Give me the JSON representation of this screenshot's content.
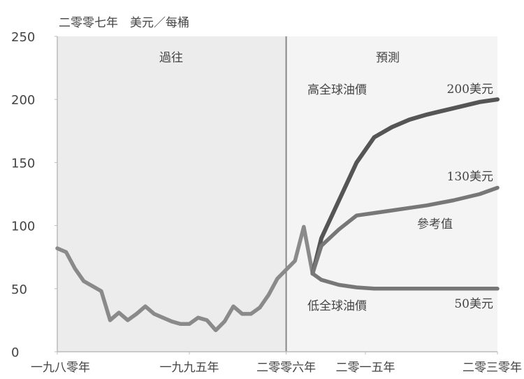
{
  "chart_data": {
    "type": "line",
    "unit_label": "二零零七年　美元／每桶",
    "x_range": [
      1980,
      2030
    ],
    "ylim": [
      0,
      250
    ],
    "y_ticks": [
      0,
      50,
      100,
      150,
      200,
      250
    ],
    "x_ticks": [
      {
        "x": 1980,
        "label": "一九八零年"
      },
      {
        "x": 1995,
        "label": "一九九五年"
      },
      {
        "x": 2006,
        "label": "二零零六年"
      },
      {
        "x": 2015,
        "label": "二零一五年"
      },
      {
        "x": 2030,
        "label": "二零三零年"
      }
    ],
    "divider_x": 2006,
    "regions": [
      {
        "label": "過往",
        "from": 1980,
        "to": 2006
      },
      {
        "label": "預測",
        "from": 2006,
        "to": 2030
      }
    ],
    "series": [
      {
        "name": "過往",
        "x": [
          1980,
          1981,
          1982,
          1983,
          1984,
          1985,
          1986,
          1987,
          1988,
          1989,
          1990,
          1991,
          1992,
          1993,
          1994,
          1995,
          1996,
          1997,
          1998,
          1999,
          2000,
          2001,
          2002,
          2003,
          2004,
          2005,
          2006,
          2007,
          2008,
          2009
        ],
        "values": [
          82,
          79,
          66,
          56,
          52,
          48,
          25,
          31,
          25,
          30,
          36,
          30,
          27,
          24,
          22,
          22,
          27,
          25,
          17,
          24,
          36,
          30,
          30,
          35,
          45,
          58,
          65,
          72,
          99,
          62
        ]
      },
      {
        "name": "高全球油價",
        "x": [
          2009,
          2010,
          2012,
          2014,
          2016,
          2018,
          2020,
          2022,
          2025,
          2028,
          2030
        ],
        "values": [
          62,
          90,
          120,
          150,
          170,
          178,
          184,
          188,
          193,
          198,
          200
        ]
      },
      {
        "name": "參考值",
        "x": [
          2009,
          2010,
          2012,
          2014,
          2016,
          2018,
          2020,
          2022,
          2025,
          2028,
          2030
        ],
        "values": [
          62,
          84,
          97,
          108,
          110,
          112,
          114,
          116,
          120,
          125,
          130
        ]
      },
      {
        "name": "低全球油價",
        "x": [
          2009,
          2010,
          2012,
          2014,
          2016,
          2018,
          2020,
          2022,
          2025,
          2028,
          2030
        ],
        "values": [
          62,
          57,
          53,
          51,
          50,
          50,
          50,
          50,
          50,
          50,
          50
        ]
      }
    ],
    "annotations": {
      "high_label": "高全球油價",
      "ref_label": "參考值",
      "low_label": "低全球油價",
      "high_end": "200美元",
      "ref_end": "130美元",
      "low_end": "50美元"
    },
    "colors": {
      "history_bg": "#ececec",
      "forecast_bg": "#f4f4f4",
      "history_line": "#8a8a8a",
      "forecast_line": "#777777",
      "high_line": "#555555",
      "divider": "#888888"
    },
    "grid": false
  }
}
